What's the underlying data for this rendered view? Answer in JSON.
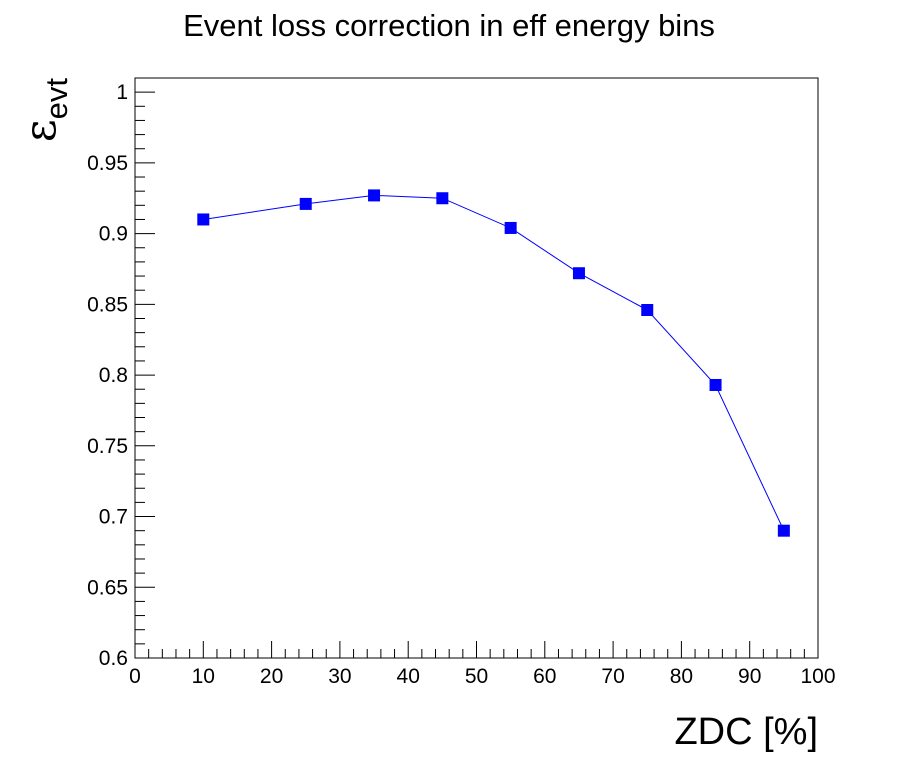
{
  "chart_data": {
    "type": "line",
    "title": "Event loss correction in eff energy bins",
    "xlabel": "ZDC [%]",
    "ylabel_symbol": "ε",
    "ylabel_subscript": "evt",
    "xlim": [
      0,
      100
    ],
    "ylim": [
      0.6,
      1.01
    ],
    "x_ticks": [
      0,
      10,
      20,
      30,
      40,
      50,
      60,
      70,
      80,
      90,
      100
    ],
    "x_tick_labels": [
      "0",
      "10",
      "20",
      "30",
      "40",
      "50",
      "60",
      "70",
      "80",
      "90",
      "100"
    ],
    "y_ticks": [
      0.6,
      0.65,
      0.7,
      0.75,
      0.8,
      0.85,
      0.9,
      0.95,
      1.0
    ],
    "y_tick_labels": [
      "0.6",
      "0.65",
      "0.7",
      "0.75",
      "0.8",
      "0.85",
      "0.9",
      "0.95",
      "1"
    ],
    "grid": false,
    "series": [
      {
        "color": "#0000ff",
        "marker": "square",
        "x": [
          10,
          25,
          35,
          45,
          55,
          65,
          75,
          85,
          95
        ],
        "y": [
          0.91,
          0.921,
          0.927,
          0.925,
          0.904,
          0.872,
          0.846,
          0.793,
          0.69
        ]
      }
    ]
  }
}
